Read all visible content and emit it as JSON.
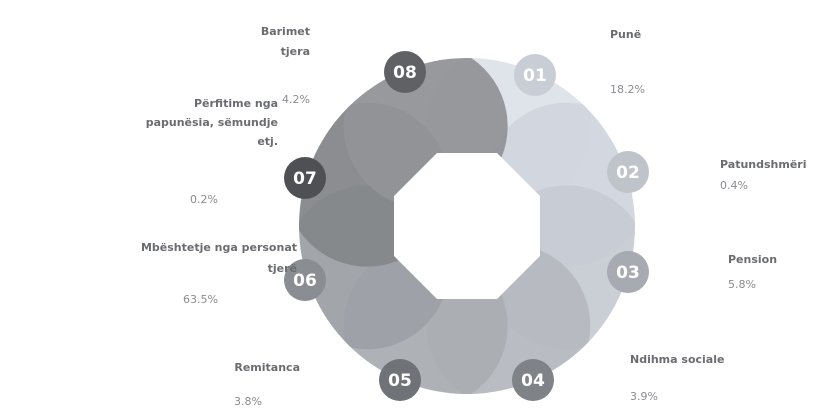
{
  "nodes": [
    {
      "number": "01",
      "label": [
        "Punë"
      ],
      "value": "18.2%"
    },
    {
      "number": "02",
      "label": [
        "Patundshmëri"
      ],
      "value": "0.4%"
    },
    {
      "number": "03",
      "label": [
        "Pension"
      ],
      "value": "5.8%"
    },
    {
      "number": "04",
      "label": [
        "Ndihma sociale"
      ],
      "value": "3.9%"
    },
    {
      "number": "05",
      "label": [
        "Remitanca"
      ],
      "value": "3.8%"
    },
    {
      "number": "06",
      "label": [
        "Mbështetje nga personat",
        "tjerë"
      ],
      "value": "63.5%"
    },
    {
      "number": "07",
      "label": [
        "Përfitime nga",
        "papunësia, sëmundje",
        "etj."
      ],
      "value": "0.2%"
    },
    {
      "number": "08",
      "label": [
        "Barimet",
        "tjera"
      ],
      "value": "4.2%"
    }
  ]
}
